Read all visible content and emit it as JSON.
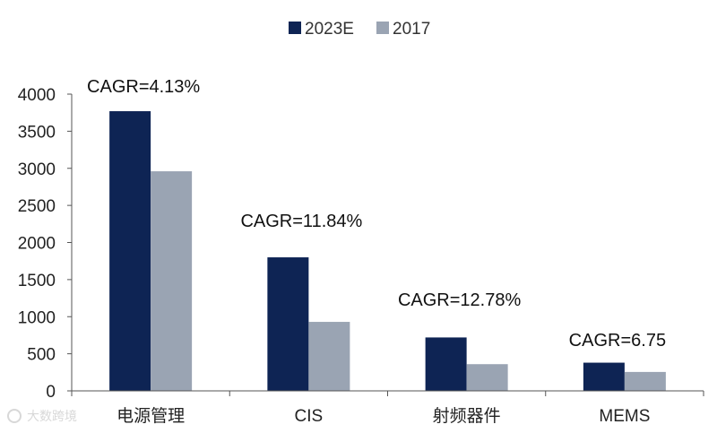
{
  "chart_data": {
    "type": "bar",
    "categories": [
      "电源管理",
      "CIS",
      "射频器件",
      "MEMS"
    ],
    "series": [
      {
        "name": "2023E",
        "color": "#0e2454",
        "values": [
          3770,
          1800,
          720,
          380
        ]
      },
      {
        "name": "2017",
        "color": "#9aa4b3",
        "values": [
          2960,
          930,
          360,
          255
        ]
      }
    ],
    "annotations": [
      "CAGR=4.13%",
      "CAGR=11.84%",
      "CAGR=12.78%",
      "CAGR=6.75"
    ],
    "ylim": [
      0,
      4000
    ],
    "yticks": [
      0,
      500,
      1000,
      1500,
      2000,
      2500,
      3000,
      3500,
      4000
    ],
    "legend_position": "top-center",
    "grid": false
  },
  "watermark": {
    "text": "大数跨境",
    "icon": "watermark-logo-icon"
  }
}
